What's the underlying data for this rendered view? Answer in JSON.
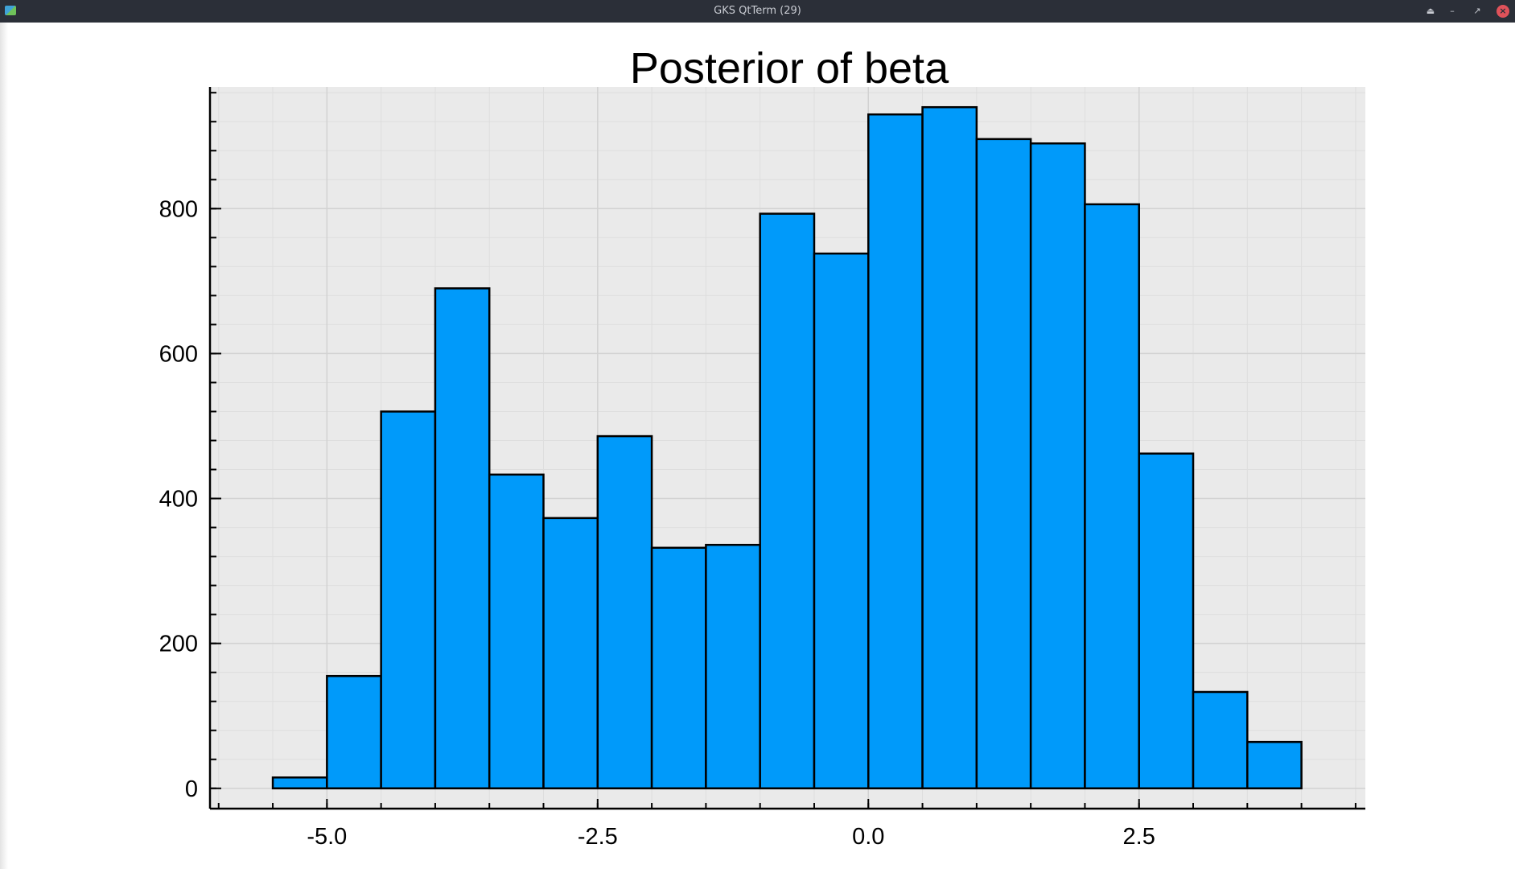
{
  "window": {
    "title": "GKS QtTerm (29)",
    "controls": {
      "shade_icon": "eject-icon",
      "minimize_icon": "minimize-icon",
      "maximize_icon": "maximize-icon",
      "close_icon": "close-icon"
    }
  },
  "colors": {
    "bar_fill": "#009AFA",
    "bar_stroke": "#000000",
    "plot_background": "#EAEAEA",
    "titlebar": "#2B2F38"
  },
  "chart_data": {
    "type": "bar",
    "title": "Posterior of beta",
    "xlabel": "",
    "ylabel": "",
    "bin_width": 0.5,
    "bins": [
      {
        "x0": -5.5,
        "x1": -5.0,
        "count": 15
      },
      {
        "x0": -5.0,
        "x1": -4.5,
        "count": 155
      },
      {
        "x0": -4.5,
        "x1": -4.0,
        "count": 520
      },
      {
        "x0": -4.0,
        "x1": -3.5,
        "count": 690
      },
      {
        "x0": -3.5,
        "x1": -3.0,
        "count": 433
      },
      {
        "x0": -3.0,
        "x1": -2.5,
        "count": 373
      },
      {
        "x0": -2.5,
        "x1": -2.0,
        "count": 486
      },
      {
        "x0": -2.0,
        "x1": -1.5,
        "count": 332
      },
      {
        "x0": -1.5,
        "x1": -1.0,
        "count": 336
      },
      {
        "x0": -1.0,
        "x1": -0.5,
        "count": 793
      },
      {
        "x0": -0.5,
        "x1": 0.0,
        "count": 738
      },
      {
        "x0": 0.0,
        "x1": 0.5,
        "count": 930
      },
      {
        "x0": 0.5,
        "x1": 1.0,
        "count": 940
      },
      {
        "x0": 1.0,
        "x1": 1.5,
        "count": 896
      },
      {
        "x0": 1.5,
        "x1": 2.0,
        "count": 890
      },
      {
        "x0": 2.0,
        "x1": 2.5,
        "count": 806
      },
      {
        "x0": 2.5,
        "x1": 3.0,
        "count": 462
      },
      {
        "x0": 3.0,
        "x1": 3.5,
        "count": 133
      },
      {
        "x0": 3.5,
        "x1": 4.0,
        "count": 64
      }
    ],
    "xlim": [
      -6.08,
      4.59
    ],
    "ylim": [
      -28,
      968
    ],
    "xticks": [
      -5.0,
      -2.5,
      0.0,
      2.5
    ],
    "xtick_labels": [
      "-5.0",
      "-2.5",
      "0.0",
      "2.5"
    ],
    "yticks": [
      0,
      200,
      400,
      600,
      800
    ],
    "ytick_labels": [
      "0",
      "200",
      "400",
      "600",
      "800"
    ],
    "x_minor_step": 0.5,
    "y_minor_step": 40,
    "grid": true,
    "legend": "none"
  }
}
